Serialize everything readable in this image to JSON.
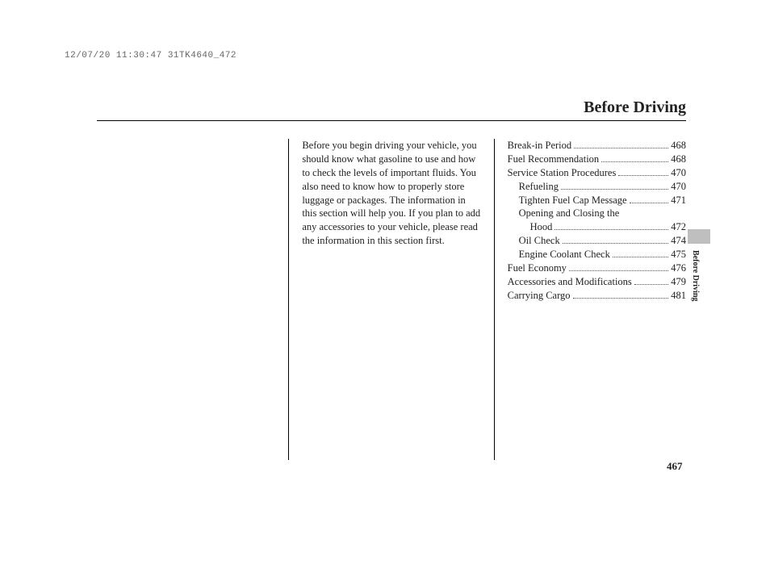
{
  "timestamp": "12/07/20 11:30:47 31TK4640_472",
  "header": {
    "title": "Before Driving"
  },
  "intro": "Before you begin driving your vehicle, you should know what gasoline to use and how to check the levels of important fluids. You also need to know how to properly store luggage or packages. The information in this section will help you. If you plan to add any accessories to your vehicle, please read the information in this section first.",
  "toc": [
    {
      "label": "Break-in Period",
      "page": "468",
      "indent": 0
    },
    {
      "label": "Fuel Recommendation",
      "page": "468",
      "indent": 0
    },
    {
      "label": "Service Station Procedures",
      "page": "470",
      "indent": 0
    },
    {
      "label": "Refueling",
      "page": "470",
      "indent": 1
    },
    {
      "label": "Tighten Fuel Cap Message",
      "page": "471",
      "indent": 1
    },
    {
      "label": "Opening and Closing the",
      "page": "",
      "indent": 1
    },
    {
      "label": "Hood",
      "page": "472",
      "indent": 2
    },
    {
      "label": "Oil Check",
      "page": "474",
      "indent": 1
    },
    {
      "label": "Engine Coolant Check",
      "page": "475",
      "indent": 1
    },
    {
      "label": "Fuel Economy",
      "page": "476",
      "indent": 0
    },
    {
      "label": "Accessories and Modifications",
      "page": "479",
      "indent": 0
    },
    {
      "label": "Carrying Cargo",
      "page": "481",
      "indent": 0
    }
  ],
  "side": {
    "label": "Before Driving"
  },
  "pageNumber": "467"
}
